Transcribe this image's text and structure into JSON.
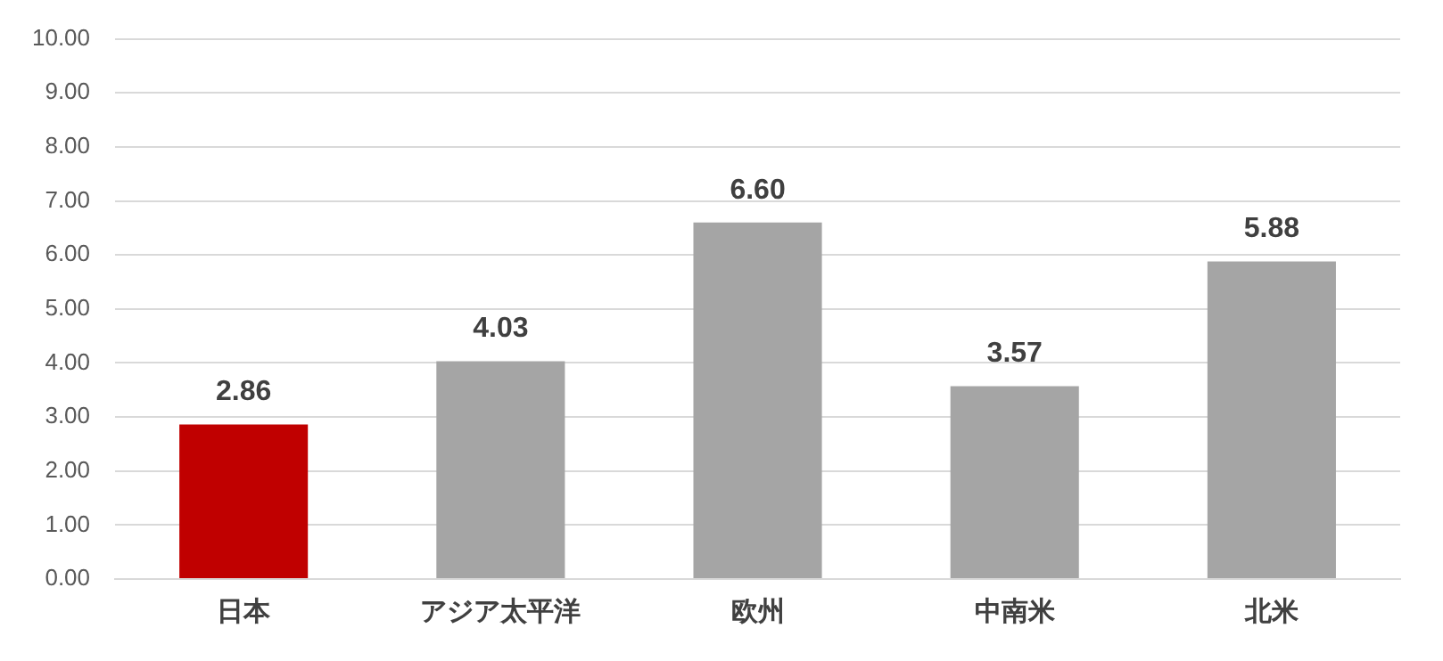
{
  "chart_data": {
    "type": "bar",
    "categories": [
      "日本",
      "アジア太平洋",
      "欧州",
      "中南米",
      "北米"
    ],
    "values": [
      2.86,
      4.03,
      6.6,
      3.57,
      5.88
    ],
    "colors": [
      "#c00000",
      "#a5a5a5",
      "#a5a5a5",
      "#a5a5a5",
      "#a5a5a5"
    ],
    "value_labels": [
      "2.86",
      "4.03",
      "6.60",
      "3.57",
      "5.88"
    ],
    "ylim": [
      0,
      10
    ],
    "yticks": [
      {
        "value": 0,
        "label": "0.00"
      },
      {
        "value": 1,
        "label": "1.00"
      },
      {
        "value": 2,
        "label": "2.00"
      },
      {
        "value": 3,
        "label": "3.00"
      },
      {
        "value": 4,
        "label": "4.00"
      },
      {
        "value": 5,
        "label": "5.00"
      },
      {
        "value": 6,
        "label": "6.00"
      },
      {
        "value": 7,
        "label": "7.00"
      },
      {
        "value": 8,
        "label": "8.00"
      },
      {
        "value": 9,
        "label": "9.00"
      },
      {
        "value": 10,
        "label": "10.00"
      }
    ],
    "grid": "y",
    "legend": false
  }
}
